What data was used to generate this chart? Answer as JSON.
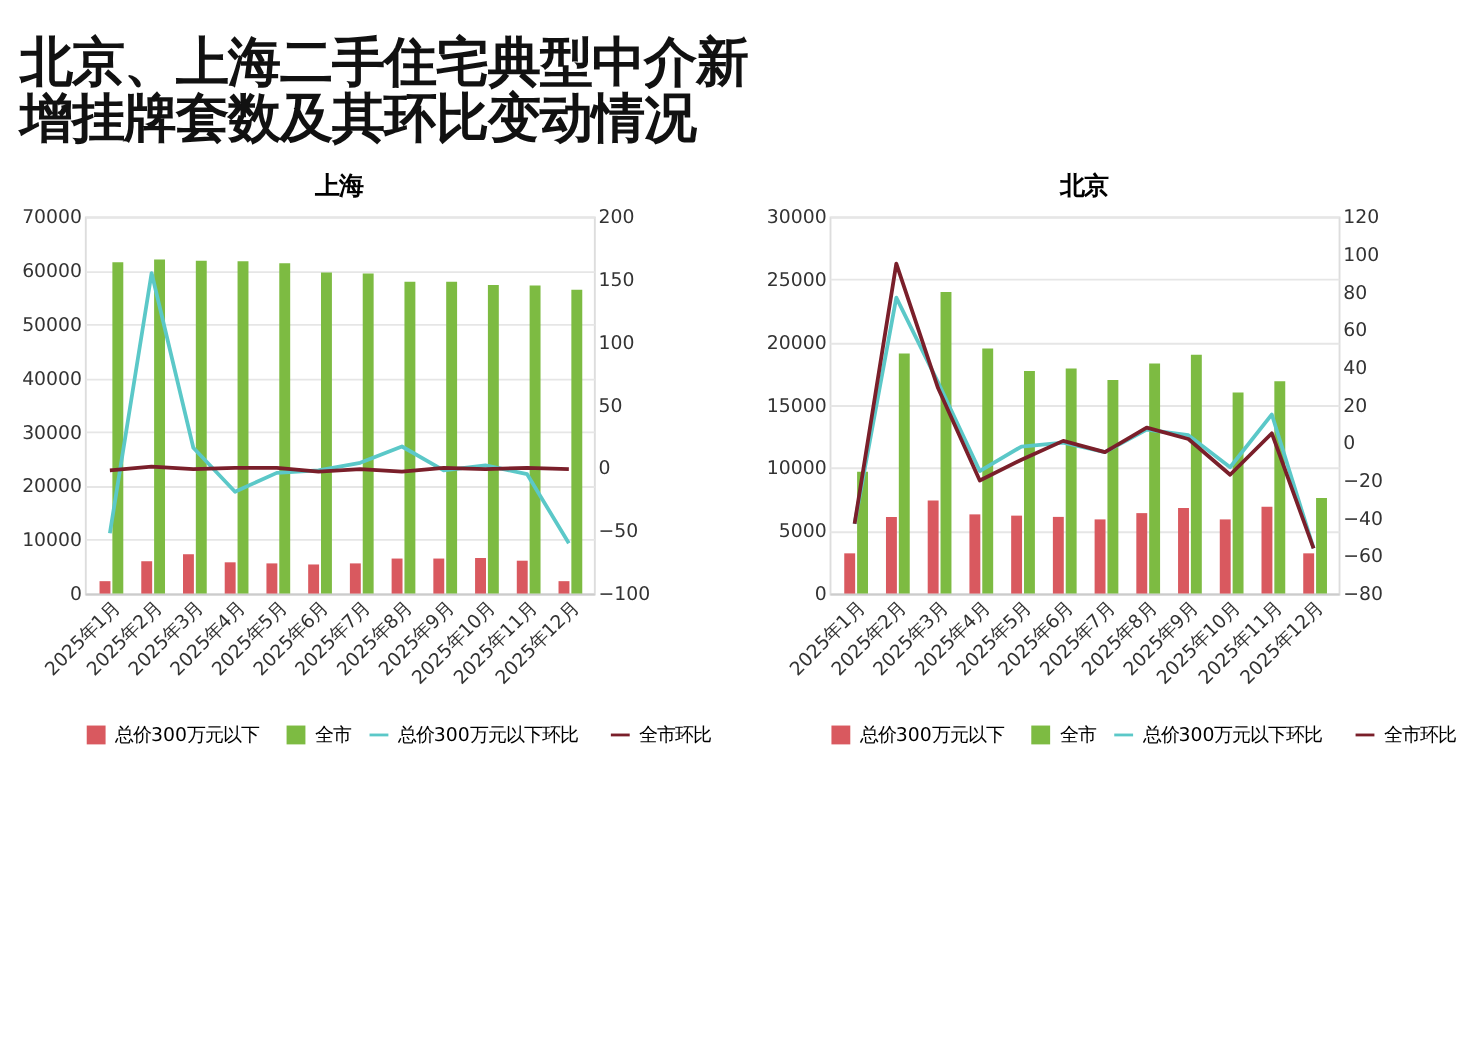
{
  "chart_data": [
    {
      "type": "bar",
      "title": "上海",
      "annotations": [
        "北京、上海二手住宅典型中介新增挂牌套数及其环比变动情况"
      ],
      "categories": [
        "2025年1月",
        "2025年2月",
        "2025年3月",
        "2025年4月",
        "2025年5月",
        "2025年6月",
        "2025年7月",
        "2025年8月",
        "2025年9月",
        "2025年10月",
        "2025年11月",
        "2025年12月"
      ],
      "series": [
        {
          "name": "总价300万元以下",
          "type": "bar",
          "color": "#d9595f",
          "values": [
            2300,
            6000,
            7300,
            5800,
            5600,
            5400,
            5600,
            6500,
            6500,
            6600,
            6100,
            2300
          ]
        },
        {
          "name": "全市",
          "type": "bar",
          "color": "#7dbb42",
          "values": [
            61500,
            62000,
            61800,
            61700,
            61300,
            59600,
            59400,
            57900,
            57900,
            57300,
            57200,
            56400
          ]
        },
        {
          "name": "总价300万元以下环比",
          "type": "line",
          "axis": "y2",
          "color": "#5bc8c8",
          "values": [
            -52,
            155,
            16,
            -19,
            -4,
            -2,
            4,
            17,
            -2,
            2,
            -5,
            -60
          ]
        },
        {
          "name": "全市环比",
          "type": "line",
          "axis": "y2",
          "color": "#7a1f2a",
          "values": [
            -2,
            1,
            -1,
            0,
            0,
            -3,
            -1,
            -3,
            0,
            -1,
            0,
            -1
          ]
        }
      ],
      "ylim": [
        0,
        70000
      ],
      "yticks": [
        0,
        10000,
        20000,
        30000,
        40000,
        50000,
        60000,
        70000
      ],
      "y2lim": [
        -100,
        200
      ],
      "y2ticks": [
        -100,
        -50,
        0,
        50,
        100,
        150,
        200
      ],
      "grid": "y",
      "legend": "bottom"
    },
    {
      "type": "bar",
      "title": "北京",
      "categories": [
        "2025年1月",
        "2025年2月",
        "2025年3月",
        "2025年4月",
        "2025年5月",
        "2025年6月",
        "2025年7月",
        "2025年8月",
        "2025年9月",
        "2025年10月",
        "2025年11月",
        "2025年12月"
      ],
      "series": [
        {
          "name": "总价300万元以下",
          "type": "bar",
          "color": "#d9595f",
          "values": [
            3200,
            6100,
            7400,
            6300,
            6200,
            6100,
            5900,
            6400,
            6800,
            5900,
            6900,
            3200
          ]
        },
        {
          "name": "全市",
          "type": "bar",
          "color": "#7dbb42",
          "values": [
            9700,
            19100,
            24000,
            19500,
            17700,
            17900,
            17000,
            18300,
            19000,
            16000,
            16900,
            7600
          ]
        },
        {
          "name": "总价300万元以下环比",
          "type": "line",
          "axis": "y2",
          "color": "#5bc8c8",
          "values": [
            -43,
            77,
            32,
            -15,
            -2,
            0,
            -5,
            7,
            4,
            -13,
            15,
            -56
          ]
        },
        {
          "name": "全市环比",
          "type": "line",
          "axis": "y2",
          "color": "#7a1f2a",
          "values": [
            -43,
            95,
            29,
            -20,
            -9,
            1,
            -5,
            8,
            2,
            -17,
            5,
            -56
          ]
        }
      ],
      "ylim": [
        0,
        30000
      ],
      "yticks": [
        0,
        5000,
        10000,
        15000,
        20000,
        25000,
        30000
      ],
      "y2lim": [
        -80,
        120
      ],
      "y2ticks": [
        -80,
        -60,
        -40,
        -20,
        0,
        20,
        40,
        60,
        80,
        100,
        120
      ],
      "grid": "y",
      "legend": "bottom"
    }
  ]
}
